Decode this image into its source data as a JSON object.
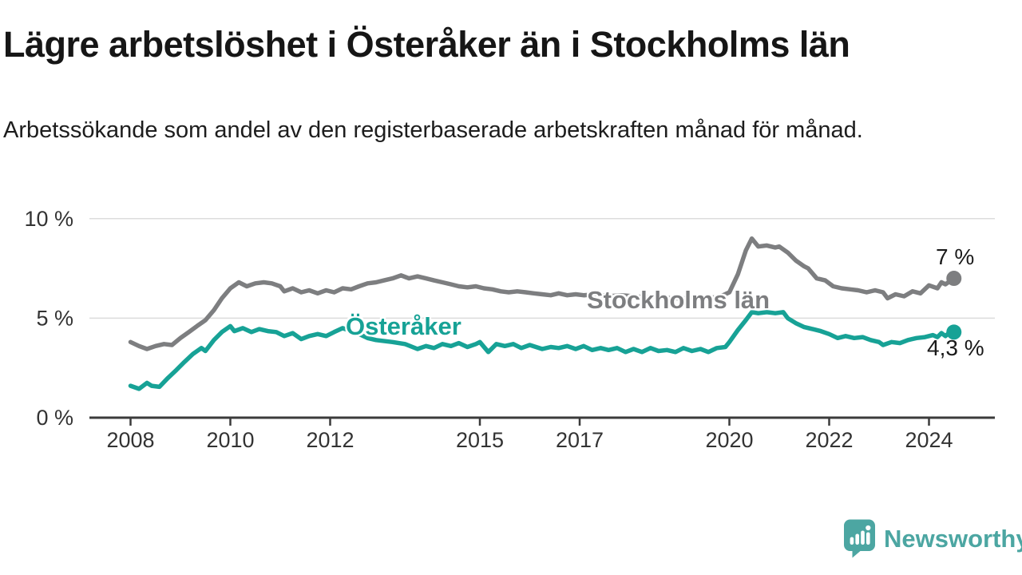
{
  "header": {
    "title": "Lägre arbetslöshet i Österåker än i Stockholms län",
    "subtitle": "Arbetssökande som andel av den registerbaserade arbetskraften månad för månad."
  },
  "footer": {
    "brand": "Newsworthy",
    "brand_color": "#4ca6a2"
  },
  "chart_data": {
    "type": "line",
    "title": "Lägre arbetslöshet i Österåker än i Stockholms län",
    "subtitle": "Arbetssökande som andel av den registerbaserade arbetskraften månad för månad.",
    "unit": "%",
    "grid": "horizontal-only",
    "legend_position": "inline-labels-on-lines",
    "x_axis": {
      "range_years": [
        2008,
        2024.6
      ],
      "ticks": [
        {
          "value": 2008,
          "label": "2008"
        },
        {
          "value": 2010,
          "label": "2010"
        },
        {
          "value": 2012,
          "label": "2012"
        },
        {
          "value": 2015,
          "label": "2015"
        },
        {
          "value": 2017,
          "label": "2017"
        },
        {
          "value": 2020,
          "label": "2020"
        },
        {
          "value": 2022,
          "label": "2022"
        },
        {
          "value": 2024,
          "label": "2024"
        }
      ]
    },
    "y_axis": {
      "range": [
        0,
        10.5
      ],
      "ticks": [
        {
          "value": 0,
          "label": "0 %"
        },
        {
          "value": 5,
          "label": "5 %"
        },
        {
          "value": 10,
          "label": "10 %"
        }
      ]
    },
    "colors": {
      "gridline": "#dcdcdc",
      "axis": "#3b3b3b",
      "tick_text": "#333333"
    },
    "series": [
      {
        "name": "Stockholms län",
        "color": "#7d7e80",
        "end_label": "7 %",
        "last_value": 7.0,
        "points": [
          [
            2008.0,
            3.8
          ],
          [
            2008.17,
            3.6
          ],
          [
            2008.33,
            3.45
          ],
          [
            2008.5,
            3.6
          ],
          [
            2008.67,
            3.7
          ],
          [
            2008.83,
            3.65
          ],
          [
            2009.0,
            4.0
          ],
          [
            2009.17,
            4.3
          ],
          [
            2009.33,
            4.6
          ],
          [
            2009.5,
            4.9
          ],
          [
            2009.67,
            5.4
          ],
          [
            2009.83,
            6.0
          ],
          [
            2010.0,
            6.5
          ],
          [
            2010.17,
            6.8
          ],
          [
            2010.33,
            6.6
          ],
          [
            2010.5,
            6.75
          ],
          [
            2010.67,
            6.8
          ],
          [
            2010.83,
            6.75
          ],
          [
            2011.0,
            6.6
          ],
          [
            2011.08,
            6.35
          ],
          [
            2011.25,
            6.5
          ],
          [
            2011.42,
            6.3
          ],
          [
            2011.58,
            6.4
          ],
          [
            2011.75,
            6.25
          ],
          [
            2011.92,
            6.4
          ],
          [
            2012.08,
            6.3
          ],
          [
            2012.25,
            6.5
          ],
          [
            2012.42,
            6.45
          ],
          [
            2012.58,
            6.6
          ],
          [
            2012.75,
            6.75
          ],
          [
            2012.92,
            6.8
          ],
          [
            2013.08,
            6.9
          ],
          [
            2013.25,
            7.0
          ],
          [
            2013.42,
            7.15
          ],
          [
            2013.58,
            7.0
          ],
          [
            2013.75,
            7.1
          ],
          [
            2013.92,
            7.0
          ],
          [
            2014.08,
            6.9
          ],
          [
            2014.25,
            6.8
          ],
          [
            2014.42,
            6.7
          ],
          [
            2014.58,
            6.6
          ],
          [
            2014.75,
            6.55
          ],
          [
            2014.92,
            6.6
          ],
          [
            2015.08,
            6.5
          ],
          [
            2015.25,
            6.45
          ],
          [
            2015.42,
            6.35
          ],
          [
            2015.58,
            6.3
          ],
          [
            2015.75,
            6.35
          ],
          [
            2015.92,
            6.3
          ],
          [
            2016.08,
            6.25
          ],
          [
            2016.25,
            6.2
          ],
          [
            2016.42,
            6.15
          ],
          [
            2016.58,
            6.25
          ],
          [
            2016.75,
            6.15
          ],
          [
            2016.92,
            6.2
          ],
          [
            2017.08,
            6.15
          ],
          [
            2017.33,
            6.2
          ],
          [
            2017.58,
            6.1
          ],
          [
            2017.83,
            6.15
          ],
          [
            2018.08,
            6.1
          ],
          [
            2018.33,
            6.05
          ],
          [
            2018.58,
            6.1
          ],
          [
            2018.83,
            6.0
          ],
          [
            2019.08,
            6.0
          ],
          [
            2019.33,
            6.05
          ],
          [
            2019.58,
            6.0
          ],
          [
            2019.83,
            6.1
          ],
          [
            2020.0,
            6.3
          ],
          [
            2020.17,
            7.2
          ],
          [
            2020.33,
            8.4
          ],
          [
            2020.45,
            9.0
          ],
          [
            2020.58,
            8.6
          ],
          [
            2020.75,
            8.65
          ],
          [
            2020.92,
            8.55
          ],
          [
            2021.0,
            8.6
          ],
          [
            2021.17,
            8.3
          ],
          [
            2021.33,
            7.9
          ],
          [
            2021.5,
            7.6
          ],
          [
            2021.58,
            7.5
          ],
          [
            2021.75,
            7.0
          ],
          [
            2021.92,
            6.9
          ],
          [
            2022.08,
            6.6
          ],
          [
            2022.25,
            6.5
          ],
          [
            2022.42,
            6.45
          ],
          [
            2022.58,
            6.4
          ],
          [
            2022.75,
            6.3
          ],
          [
            2022.92,
            6.4
          ],
          [
            2023.08,
            6.3
          ],
          [
            2023.17,
            6.0
          ],
          [
            2023.33,
            6.2
          ],
          [
            2023.5,
            6.1
          ],
          [
            2023.67,
            6.35
          ],
          [
            2023.83,
            6.25
          ],
          [
            2024.0,
            6.65
          ],
          [
            2024.17,
            6.5
          ],
          [
            2024.25,
            6.8
          ],
          [
            2024.33,
            6.7
          ],
          [
            2024.5,
            7.0
          ]
        ]
      },
      {
        "name": "Österåker",
        "color": "#17a296",
        "end_label": "4,3 %",
        "last_value": 4.3,
        "points": [
          [
            2008.0,
            1.6
          ],
          [
            2008.17,
            1.45
          ],
          [
            2008.33,
            1.75
          ],
          [
            2008.42,
            1.6
          ],
          [
            2008.58,
            1.55
          ],
          [
            2008.75,
            2.0
          ],
          [
            2008.92,
            2.4
          ],
          [
            2009.08,
            2.8
          ],
          [
            2009.25,
            3.2
          ],
          [
            2009.42,
            3.5
          ],
          [
            2009.5,
            3.35
          ],
          [
            2009.67,
            3.9
          ],
          [
            2009.83,
            4.3
          ],
          [
            2010.0,
            4.6
          ],
          [
            2010.08,
            4.35
          ],
          [
            2010.25,
            4.5
          ],
          [
            2010.42,
            4.3
          ],
          [
            2010.58,
            4.45
          ],
          [
            2010.75,
            4.35
          ],
          [
            2010.92,
            4.3
          ],
          [
            2011.08,
            4.1
          ],
          [
            2011.25,
            4.25
          ],
          [
            2011.42,
            3.95
          ],
          [
            2011.58,
            4.1
          ],
          [
            2011.75,
            4.2
          ],
          [
            2011.92,
            4.1
          ],
          [
            2012.08,
            4.3
          ],
          [
            2012.25,
            4.5
          ],
          [
            2012.42,
            4.35
          ],
          [
            2012.58,
            4.2
          ],
          [
            2012.75,
            4.0
          ],
          [
            2012.92,
            3.9
          ],
          [
            2013.25,
            3.8
          ],
          [
            2013.5,
            3.7
          ],
          [
            2013.75,
            3.45
          ],
          [
            2013.92,
            3.6
          ],
          [
            2014.08,
            3.5
          ],
          [
            2014.25,
            3.7
          ],
          [
            2014.42,
            3.6
          ],
          [
            2014.58,
            3.75
          ],
          [
            2014.75,
            3.55
          ],
          [
            2014.92,
            3.7
          ],
          [
            2015.0,
            3.8
          ],
          [
            2015.17,
            3.3
          ],
          [
            2015.33,
            3.7
          ],
          [
            2015.5,
            3.6
          ],
          [
            2015.67,
            3.7
          ],
          [
            2015.83,
            3.5
          ],
          [
            2016.0,
            3.65
          ],
          [
            2016.25,
            3.45
          ],
          [
            2016.42,
            3.55
          ],
          [
            2016.58,
            3.5
          ],
          [
            2016.75,
            3.6
          ],
          [
            2016.92,
            3.45
          ],
          [
            2017.08,
            3.6
          ],
          [
            2017.25,
            3.4
          ],
          [
            2017.42,
            3.5
          ],
          [
            2017.58,
            3.4
          ],
          [
            2017.75,
            3.5
          ],
          [
            2017.92,
            3.3
          ],
          [
            2018.08,
            3.45
          ],
          [
            2018.25,
            3.3
          ],
          [
            2018.42,
            3.5
          ],
          [
            2018.58,
            3.35
          ],
          [
            2018.75,
            3.4
          ],
          [
            2018.92,
            3.3
          ],
          [
            2019.08,
            3.5
          ],
          [
            2019.25,
            3.35
          ],
          [
            2019.42,
            3.45
          ],
          [
            2019.58,
            3.3
          ],
          [
            2019.75,
            3.5
          ],
          [
            2019.92,
            3.55
          ],
          [
            2020.0,
            3.8
          ],
          [
            2020.17,
            4.4
          ],
          [
            2020.33,
            4.9
          ],
          [
            2020.45,
            5.3
          ],
          [
            2020.58,
            5.25
          ],
          [
            2020.75,
            5.3
          ],
          [
            2020.92,
            5.25
          ],
          [
            2021.08,
            5.3
          ],
          [
            2021.17,
            5.0
          ],
          [
            2021.33,
            4.75
          ],
          [
            2021.5,
            4.55
          ],
          [
            2021.67,
            4.45
          ],
          [
            2021.83,
            4.35
          ],
          [
            2022.0,
            4.2
          ],
          [
            2022.17,
            4.0
          ],
          [
            2022.33,
            4.1
          ],
          [
            2022.5,
            4.0
          ],
          [
            2022.67,
            4.05
          ],
          [
            2022.83,
            3.9
          ],
          [
            2023.0,
            3.8
          ],
          [
            2023.08,
            3.65
          ],
          [
            2023.25,
            3.8
          ],
          [
            2023.42,
            3.75
          ],
          [
            2023.58,
            3.9
          ],
          [
            2023.75,
            4.0
          ],
          [
            2023.92,
            4.05
          ],
          [
            2024.08,
            4.15
          ],
          [
            2024.17,
            4.05
          ],
          [
            2024.25,
            4.25
          ],
          [
            2024.33,
            4.1
          ],
          [
            2024.42,
            4.3
          ],
          [
            2024.5,
            4.3
          ]
        ]
      }
    ]
  }
}
